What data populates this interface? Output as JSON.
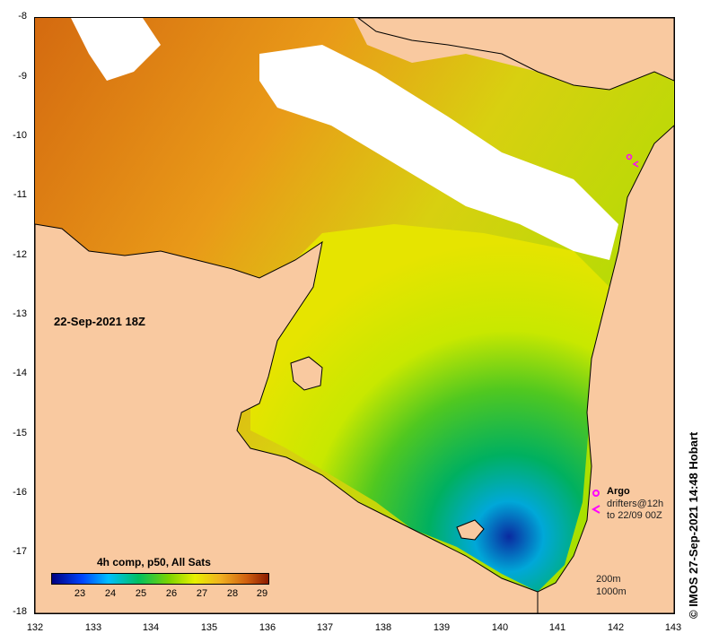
{
  "map": {
    "date_label": "22-Sep-2021 18Z",
    "lat_ticks": [
      "-8",
      "-9",
      "-10",
      "-11",
      "-12",
      "-13",
      "-14",
      "-15",
      "-16",
      "-17",
      "-18"
    ],
    "lon_ticks": [
      "132",
      "133",
      "134",
      "135",
      "136",
      "137",
      "138",
      "139",
      "140",
      "141",
      "142",
      "143"
    ]
  },
  "colorbar": {
    "title": "4h comp, p50, All Sats",
    "labels": [
      "23",
      "24",
      "25",
      "26",
      "27",
      "28",
      "29"
    ]
  },
  "legend": {
    "argo_label": "Argo",
    "drifters_label": "drifters@12h",
    "drifters_date": "to 22/09 00Z",
    "depth_200": "200m",
    "depth_1000": "1000m"
  },
  "credit": "© IMOS 27-Sep-2021 14:48 Hobart",
  "colors": {
    "land": "#f9c9a0",
    "cloud": "#ffffff",
    "argo": "#ff00ff"
  }
}
